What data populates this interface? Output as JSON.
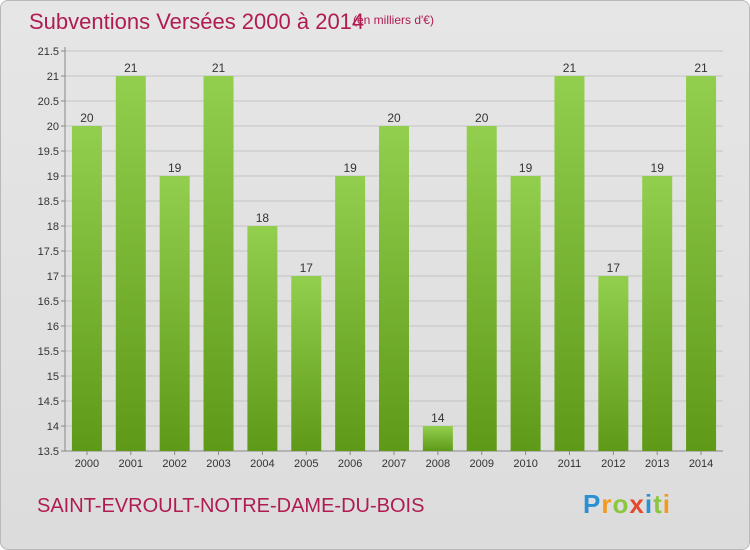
{
  "title": "Subventions Versées 2000 à 2014",
  "subtitle": "(en milliers d'€)",
  "place": "SAINT-EVROULT-NOTRE-DAME-DU-BOIS",
  "logo": "Proxiti",
  "colors": {
    "title": "#b01c52",
    "bar_top": "#93cf4e",
    "bar_bottom": "#5e9a18",
    "grid": "#c4c4c4"
  },
  "chart_data": {
    "type": "bar",
    "categories": [
      "2000",
      "2001",
      "2002",
      "2003",
      "2004",
      "2005",
      "2006",
      "2007",
      "2008",
      "2009",
      "2010",
      "2011",
      "2012",
      "2013",
      "2014"
    ],
    "values": [
      20,
      21,
      19,
      21,
      18,
      17,
      19,
      20,
      14,
      20,
      19,
      21,
      17,
      19,
      21
    ],
    "ylim": [
      13.5,
      21.5
    ],
    "yticks": [
      "13.5",
      "14",
      "14.5",
      "15",
      "15.5",
      "16",
      "16.5",
      "17",
      "17.5",
      "18",
      "18.5",
      "19",
      "19.5",
      "20",
      "20.5",
      "21",
      "21.5"
    ],
    "grid": true,
    "title": "Subventions Versées 2000 à 2014",
    "xlabel": "",
    "ylabel": ""
  }
}
